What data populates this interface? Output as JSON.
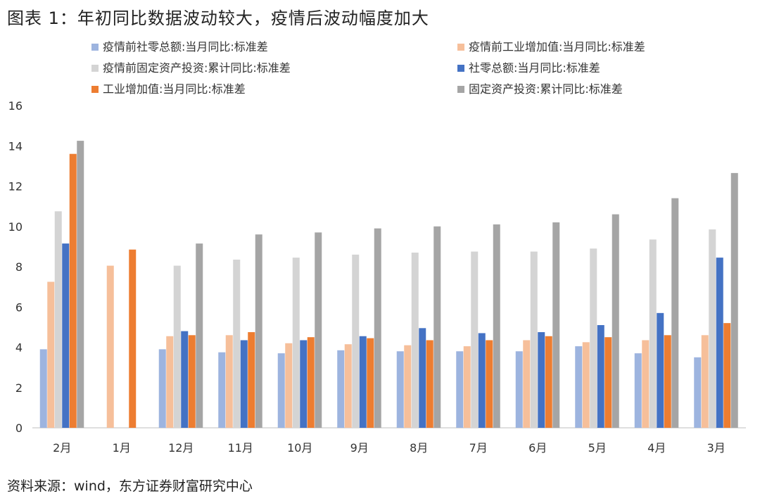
{
  "caption": {
    "title": "图表 1：年初同比数据波动较大，疫情后波动幅度加大",
    "source": "资料来源：wind，东方证券财富研究中心"
  },
  "chart_data": {
    "type": "bar",
    "categories": [
      "2月",
      "1月",
      "12月",
      "11月",
      "10月",
      "9月",
      "8月",
      "7月",
      "6月",
      "5月",
      "4月",
      "3月"
    ],
    "ylim": [
      0,
      16
    ],
    "yticks": [
      0,
      2,
      4,
      6,
      8,
      10,
      12,
      14,
      16
    ],
    "grid": false,
    "legend_position": "top",
    "series": [
      {
        "name": "疫情前社零总额:当月同比:标准差",
        "color": "#9db4df",
        "values": [
          3.9,
          null,
          3.9,
          3.75,
          3.7,
          3.85,
          3.8,
          3.8,
          3.8,
          4.05,
          3.7,
          3.5
        ]
      },
      {
        "name": "疫情前工业增加值:当月同比:标准差",
        "color": "#f6bf9a",
        "values": [
          7.25,
          8.05,
          4.55,
          4.6,
          4.2,
          4.15,
          4.1,
          4.05,
          4.35,
          4.25,
          4.35,
          4.6
        ]
      },
      {
        "name": "疫情前固定资产投资:累计同比:标准差",
        "color": "#d4d4d4",
        "values": [
          10.75,
          null,
          8.05,
          8.35,
          8.45,
          8.6,
          8.7,
          8.75,
          8.75,
          8.9,
          9.35,
          9.85
        ]
      },
      {
        "name": "社零总额:当月同比:标准差",
        "color": "#4472c4",
        "values": [
          9.15,
          null,
          4.8,
          4.35,
          4.35,
          4.55,
          4.95,
          4.7,
          4.75,
          5.1,
          5.7,
          8.45
        ]
      },
      {
        "name": "工业增加值:当月同比:标准差",
        "color": "#ed7d31",
        "values": [
          13.6,
          8.85,
          4.6,
          4.75,
          4.5,
          4.45,
          4.35,
          4.35,
          4.55,
          4.5,
          4.6,
          5.2
        ]
      },
      {
        "name": "固定资产投资:累计同比:标准差",
        "color": "#a5a5a5",
        "values": [
          14.25,
          null,
          9.15,
          9.6,
          9.7,
          9.9,
          10.0,
          10.1,
          10.2,
          10.6,
          11.4,
          12.65
        ]
      }
    ]
  }
}
